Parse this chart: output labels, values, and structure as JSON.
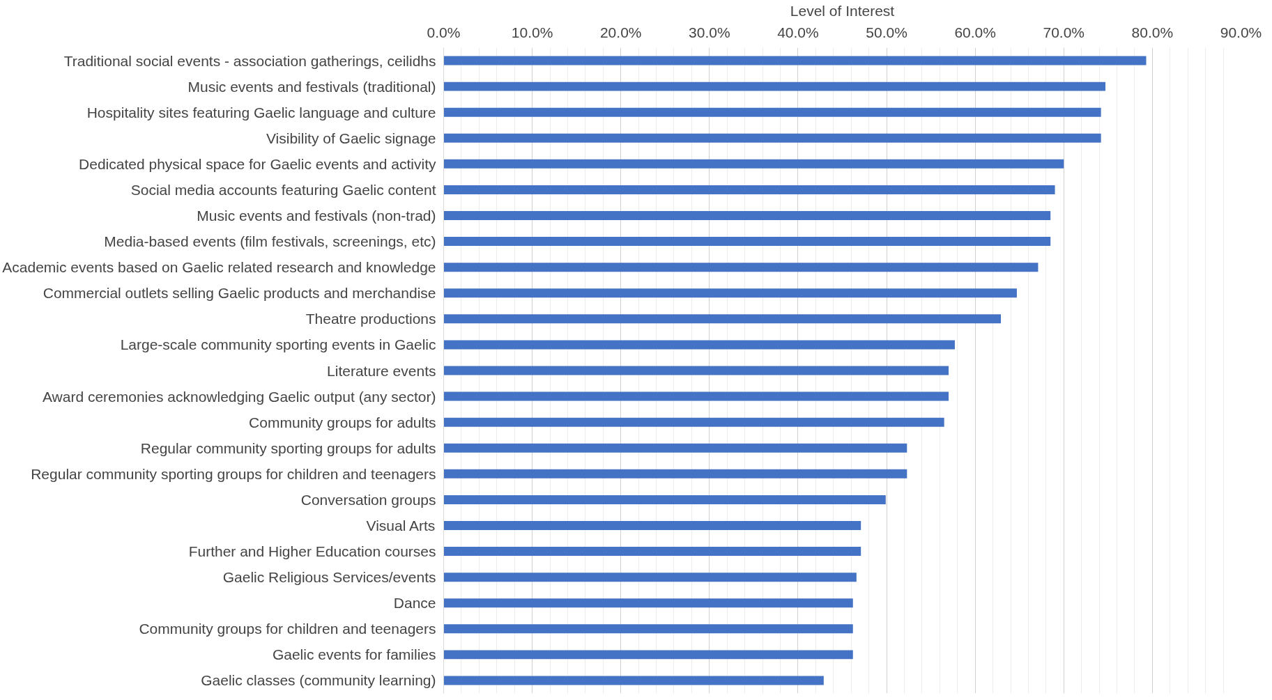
{
  "chart_data": {
    "type": "bar",
    "orientation": "horizontal",
    "xlabel": "Level of Interest",
    "color": "#4472c4",
    "categories": [
      "Traditional social events - association gatherings, ceilidhs",
      "Music events and festivals (traditional)",
      "Hospitality sites featuring Gaelic language and culture",
      "Visibility of Gaelic signage",
      "Dedicated physical space for Gaelic events and activity",
      "Social media accounts featuring Gaelic content",
      "Music events and festivals (non-trad)",
      "Media-based events (film festivals, screenings, etc)",
      "Academic events based on Gaelic related research and knowledge",
      "Commercial outlets selling Gaelic products and merchandise",
      "Theatre productions",
      "Large-scale community sporting events in Gaelic",
      "Literature events",
      "Award ceremonies acknowledging Gaelic output (any sector)",
      "Community groups for adults",
      "Regular community sporting groups for adults",
      "Regular community sporting groups for children and teenagers",
      "Conversation groups",
      "Visual Arts",
      "Further and Higher Education courses",
      "Gaelic Religious Services/events",
      "Dance",
      "Community groups for children and teenagers",
      "Gaelic events for families",
      "Gaelic classes (community learning)"
    ],
    "values": [
      79.3,
      74.7,
      74.2,
      74.2,
      70.0,
      69.0,
      68.5,
      68.5,
      67.1,
      64.7,
      62.9,
      57.7,
      57.0,
      57.0,
      56.5,
      52.3,
      52.3,
      49.9,
      47.1,
      47.1,
      46.6,
      46.2,
      46.2,
      46.2,
      42.9
    ],
    "xlim": [
      0,
      90
    ],
    "xticks": [
      {
        "value": 0,
        "label": "0.0%"
      },
      {
        "value": 10,
        "label": "10.0%"
      },
      {
        "value": 20,
        "label": "20.0%"
      },
      {
        "value": 30,
        "label": "30.0%"
      },
      {
        "value": 40,
        "label": "40.0%"
      },
      {
        "value": 50,
        "label": "50.0%"
      },
      {
        "value": 60,
        "label": "60.0%"
      },
      {
        "value": 70,
        "label": "70.0%"
      },
      {
        "value": 80,
        "label": "80.0%"
      },
      {
        "value": 90,
        "label": "90.0%"
      }
    ],
    "grid": "x"
  }
}
